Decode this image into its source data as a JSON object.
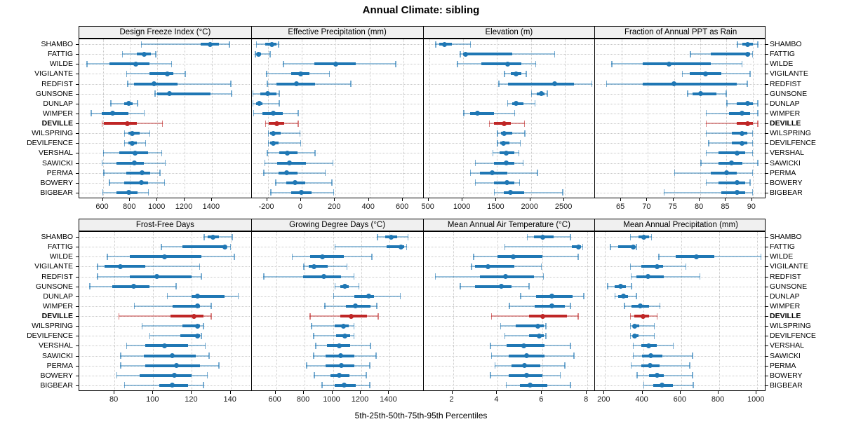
{
  "title": "Annual Climate: sibling",
  "caption": "5th-25th-50th-75th-95th Percentiles",
  "colors": {
    "series": "#1f77b4",
    "highlight": "#bf2626",
    "grid": "#c9c9c9",
    "strip_bg": "#f0f0f0",
    "border": "#000000"
  },
  "chart_data": {
    "type": "dotplot",
    "percentile_labels": [
      "5th",
      "25th",
      "50th",
      "75th",
      "95th"
    ],
    "grid": "dotted",
    "layout": "2 rows x 4 columns, site labels left and right, x axes below each row",
    "sites": [
      "SHAMBO",
      "FATTIG",
      "WILDE",
      "VIGILANTE",
      "REDFIST",
      "GUNSONE",
      "DUNLAP",
      "WIMPER",
      "DEVILLE",
      "WILSPRING",
      "DEVILFENCE",
      "VERSHAL",
      "SAWICKI",
      "PERMA",
      "BOWERY",
      "BIGBEAR"
    ],
    "highlight_site": "DEVILLE",
    "panels": [
      {
        "title": "Design Freeze Index (°C)",
        "xticks": [
          600,
          800,
          1000,
          1200,
          1400
        ],
        "xlim": [
          430,
          1680
        ],
        "values": {
          "SHAMBO": [
            880,
            1320,
            1390,
            1450,
            1530
          ],
          "FATTIG": [
            740,
            850,
            905,
            955,
            990
          ],
          "WILDE": [
            480,
            650,
            840,
            940,
            1105
          ],
          "VIGILANTE": [
            770,
            940,
            1075,
            1120,
            1205
          ],
          "REDFIST": [
            780,
            830,
            975,
            1150,
            1540
          ],
          "GUNSONE": [
            980,
            1000,
            1090,
            1390,
            1545
          ],
          "DUNLAP": [
            655,
            755,
            790,
            820,
            855
          ],
          "WIMPER": [
            510,
            590,
            670,
            790,
            905
          ],
          "DEVILLE": [
            590,
            610,
            780,
            850,
            1040
          ],
          "WILSPRING": [
            755,
            790,
            815,
            870,
            945
          ],
          "DEVILFENCE": [
            755,
            790,
            815,
            850,
            915
          ],
          "VERSHAL": [
            600,
            720,
            835,
            930,
            1035
          ],
          "SAWICKI": [
            590,
            700,
            830,
            900,
            1060
          ],
          "PERMA": [
            605,
            770,
            890,
            945,
            1020
          ],
          "BOWERY": [
            645,
            755,
            885,
            930,
            1055
          ],
          "BIGBEAR": [
            595,
            700,
            790,
            855,
            935
          ]
        }
      },
      {
        "title": "Effective Precipitation (mm)",
        "xticks": [
          -200,
          0,
          200,
          400,
          600
        ],
        "xlim": [
          -292,
          711
        ],
        "values": {
          "SHAMBO": [
            -270,
            -215,
            -175,
            -150,
            -135
          ],
          "FATTIG": [
            -275,
            -265,
            -255,
            -240,
            -185
          ],
          "WILDE": [
            -110,
            75,
            200,
            320,
            555
          ],
          "VIGILANTE": [
            -210,
            -60,
            -5,
            45,
            165
          ],
          "REDFIST": [
            -205,
            -150,
            -30,
            80,
            290
          ],
          "GUNSONE": [
            -290,
            -245,
            -200,
            -150,
            -130
          ],
          "DUNLAP": [
            -290,
            -270,
            -250,
            -230,
            -130
          ],
          "WIMPER": [
            -285,
            -230,
            -165,
            -110,
            -20
          ],
          "DEVILLE": [
            -215,
            -195,
            -145,
            -105,
            -20
          ],
          "WILSPRING": [
            -200,
            -185,
            -165,
            -125,
            -10
          ],
          "DEVILFENCE": [
            -200,
            -185,
            -165,
            -135,
            -5
          ],
          "VERSHAL": [
            -205,
            -130,
            -85,
            -25,
            80
          ],
          "SAWICKI": [
            -220,
            -145,
            -70,
            25,
            185
          ],
          "PERMA": [
            -225,
            -135,
            -90,
            -25,
            140
          ],
          "BOWERY": [
            -155,
            -90,
            -40,
            20,
            180
          ],
          "BIGBEAR": [
            -185,
            -60,
            0,
            60,
            190
          ]
        }
      },
      {
        "title": "Elevation (m)",
        "xticks": [
          500,
          1000,
          1500,
          2000,
          2500
        ],
        "xlim": [
          420,
          2930
        ],
        "values": {
          "SHAMBO": [
            590,
            650,
            730,
            830,
            1110
          ],
          "FATTIG": [
            950,
            1000,
            1040,
            1720,
            2350
          ],
          "WILDE": [
            910,
            1270,
            1660,
            1860,
            2070
          ],
          "VIGILANTE": [
            1600,
            1700,
            1780,
            1860,
            1930
          ],
          "REDFIST": [
            1520,
            1660,
            2350,
            2630,
            2900
          ],
          "GUNSONE": [
            2000,
            2080,
            2150,
            2200,
            2240
          ],
          "DUNLAP": [
            1650,
            1720,
            1780,
            1890,
            2060
          ],
          "WIMPER": [
            1000,
            1100,
            1210,
            1450,
            1760
          ],
          "DEVILLE": [
            1380,
            1450,
            1600,
            1700,
            1905
          ],
          "WILSPRING": [
            1500,
            1560,
            1600,
            1720,
            1910
          ],
          "DEVILFENCE": [
            1500,
            1550,
            1590,
            1680,
            1845
          ],
          "VERSHAL": [
            1430,
            1540,
            1640,
            1750,
            1825
          ],
          "SAWICKI": [
            1170,
            1450,
            1640,
            1750,
            1885
          ],
          "PERMA": [
            1100,
            1250,
            1430,
            1650,
            2100
          ],
          "BOWERY": [
            1170,
            1450,
            1650,
            1750,
            1835
          ],
          "BIGBEAR": [
            1450,
            1600,
            1700,
            1900,
            2470
          ]
        }
      },
      {
        "title": "Fraction of Annual PPT as Rain",
        "xticks": [
          65,
          70,
          75,
          80,
          85,
          90
        ],
        "xlim": [
          60,
          92.5
        ],
        "values": {
          "SHAMBO": [
            87,
            88,
            89,
            90,
            91
          ],
          "FATTIG": [
            78,
            82,
            89,
            89.5,
            90
          ],
          "WILDE": [
            63,
            69,
            74,
            82,
            88
          ],
          "VIGILANTE": [
            76.5,
            78,
            81,
            84,
            89.5
          ],
          "REDFIST": [
            62,
            69,
            75,
            87,
            89
          ],
          "GUNSONE": [
            77.5,
            78.5,
            80,
            83,
            85
          ],
          "DUNLAP": [
            85,
            87,
            89,
            90,
            91
          ],
          "WIMPER": [
            81,
            85.5,
            88,
            89.5,
            91
          ],
          "DEVILLE": [
            81,
            87,
            89,
            90,
            91
          ],
          "WILSPRING": [
            81,
            86,
            88,
            89,
            90
          ],
          "DEVILFENCE": [
            81.5,
            86,
            88,
            89,
            90
          ],
          "VERSHAL": [
            81,
            83.5,
            87,
            88.5,
            90
          ],
          "SAWICKI": [
            80,
            83.5,
            86,
            88,
            91
          ],
          "PERMA": [
            75,
            82,
            85,
            87,
            90
          ],
          "BOWERY": [
            81,
            83.5,
            87,
            88.5,
            89.5
          ],
          "BIGBEAR": [
            73,
            84,
            87,
            88.5,
            90
          ]
        }
      },
      {
        "title": "Frost-Free Days",
        "xticks": [
          80,
          100,
          120,
          140
        ],
        "xlim": [
          62,
          150
        ],
        "values": {
          "SHAMBO": [
            126,
            128,
            131,
            134,
            141
          ],
          "FATTIG": [
            104,
            115,
            137,
            138,
            140
          ],
          "WILDE": [
            76,
            88,
            106,
            125,
            142
          ],
          "VIGILANTE": [
            71,
            75,
            83,
            96,
            124
          ],
          "REDFIST": [
            71,
            88,
            102,
            120,
            125
          ],
          "GUNSONE": [
            67,
            79,
            90,
            98,
            112
          ],
          "DUNLAP": [
            107,
            120,
            123,
            137,
            144
          ],
          "WIMPER": [
            90,
            110,
            123,
            124,
            130
          ],
          "DEVILLE": [
            82,
            109,
            121,
            126,
            130
          ],
          "WILSPRING": [
            94,
            115,
            123,
            124,
            126
          ],
          "DEVILFENCE": [
            98,
            114,
            123,
            124,
            125
          ],
          "VERSHAL": [
            86,
            96,
            106,
            118,
            127
          ],
          "SAWICKI": [
            83,
            95,
            110,
            122,
            129
          ],
          "PERMA": [
            83,
            96,
            112,
            124,
            134
          ],
          "BOWERY": [
            81,
            93,
            111,
            120,
            128
          ],
          "BIGBEAR": [
            85,
            103,
            110,
            118,
            126
          ]
        }
      },
      {
        "title": "Growing Degree Days (°C)",
        "xticks": [
          600,
          800,
          1000,
          1200,
          1400
        ],
        "xlim": [
          430,
          1630
        ],
        "values": {
          "SHAMBO": [
            1310,
            1370,
            1410,
            1450,
            1530
          ],
          "FATTIG": [
            1010,
            1380,
            1480,
            1500,
            1520
          ],
          "WILDE": [
            710,
            840,
            925,
            1075,
            1275
          ],
          "VIGILANTE": [
            790,
            830,
            865,
            965,
            1100
          ],
          "REDFIST": [
            510,
            790,
            935,
            1055,
            1150
          ],
          "GUNSONE": [
            1010,
            1050,
            1085,
            1110,
            1185
          ],
          "DUNLAP": [
            1000,
            1150,
            1250,
            1290,
            1475
          ],
          "WIMPER": [
            940,
            1090,
            1160,
            1265,
            1310
          ],
          "DEVILLE": [
            835,
            1050,
            1130,
            1240,
            1320
          ],
          "WILSPRING": [
            845,
            1010,
            1075,
            1110,
            1150
          ],
          "DEVILFENCE": [
            860,
            1020,
            1085,
            1120,
            1150
          ],
          "VERSHAL": [
            875,
            960,
            1045,
            1120,
            1265
          ],
          "SAWICKI": [
            860,
            950,
            1055,
            1150,
            1305
          ],
          "PERMA": [
            810,
            950,
            1060,
            1150,
            1260
          ],
          "BOWERY": [
            865,
            980,
            1045,
            1115,
            1235
          ],
          "BIGBEAR": [
            920,
            1010,
            1080,
            1160,
            1260
          ]
        }
      },
      {
        "title": "Mean Annual Air Temperature (°C)",
        "xticks": [
          2,
          4,
          6,
          8
        ],
        "xlim": [
          0.7,
          8.3
        ],
        "values": {
          "SHAMBO": [
            5.3,
            5.6,
            6.0,
            6.5,
            7.25
          ],
          "FATTIG": [
            4.3,
            7.3,
            7.6,
            7.7,
            7.8
          ],
          "WILDE": [
            2.9,
            4.0,
            4.7,
            6.0,
            7.6
          ],
          "VIGILANTE": [
            2.8,
            3.0,
            3.55,
            4.75,
            5.95
          ],
          "REDFIST": [
            1.2,
            3.2,
            4.35,
            5.6,
            6.05
          ],
          "GUNSONE": [
            2.3,
            3.0,
            4.15,
            4.6,
            5.4
          ],
          "DUNLAP": [
            5.0,
            5.7,
            6.4,
            7.35,
            7.85
          ],
          "WIMPER": [
            4.5,
            5.65,
            6.4,
            7.0,
            7.25
          ],
          "DEVILLE": [
            3.7,
            5.4,
            6.0,
            7.1,
            7.6
          ],
          "WILSPRING": [
            4.1,
            4.8,
            5.8,
            6.05,
            6.15
          ],
          "DEVILFENCE": [
            4.3,
            5.4,
            5.85,
            6.05,
            6.15
          ],
          "VERSHAL": [
            3.65,
            4.4,
            5.15,
            6.1,
            7.25
          ],
          "SAWICKI": [
            3.7,
            4.5,
            5.3,
            6.1,
            7.4
          ],
          "PERMA": [
            3.85,
            4.6,
            5.2,
            5.9,
            7.0
          ],
          "BOWERY": [
            3.65,
            4.5,
            5.3,
            6.0,
            6.8
          ],
          "BIGBEAR": [
            4.35,
            5.0,
            5.45,
            6.2,
            7.25
          ]
        }
      },
      {
        "title": "Mean Annual Precipitation (mm)",
        "xticks": [
          200,
          400,
          600,
          800,
          1000
        ],
        "xlim": [
          150,
          1045
        ],
        "values": {
          "SHAMBO": [
            330,
            375,
            405,
            430,
            445
          ],
          "FATTIG": [
            225,
            270,
            350,
            355,
            365
          ],
          "WILDE": [
            480,
            570,
            680,
            775,
            1020
          ],
          "VIGILANTE": [
            330,
            390,
            475,
            505,
            625
          ],
          "REDFIST": [
            335,
            365,
            425,
            510,
            700
          ],
          "GUNSONE": [
            210,
            250,
            280,
            310,
            340
          ],
          "DUNLAP": [
            250,
            270,
            295,
            320,
            365
          ],
          "WIMPER": [
            300,
            340,
            385,
            430,
            490
          ],
          "DEVILLE": [
            330,
            355,
            400,
            430,
            475
          ],
          "WILSPRING": [
            330,
            345,
            355,
            380,
            460
          ],
          "DEVILFENCE": [
            330,
            345,
            355,
            375,
            460
          ],
          "VERSHAL": [
            345,
            390,
            430,
            470,
            560
          ],
          "SAWICKI": [
            345,
            395,
            440,
            500,
            660
          ],
          "PERMA": [
            335,
            390,
            435,
            485,
            645
          ],
          "BOWERY": [
            365,
            430,
            475,
            510,
            660
          ],
          "BIGBEAR": [
            400,
            455,
            500,
            555,
            665
          ]
        }
      }
    ]
  }
}
